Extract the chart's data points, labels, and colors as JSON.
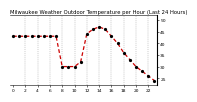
{
  "title": "Milwaukee Weather Outdoor Temperature per Hour (Last 24 Hours)",
  "hours": [
    0,
    1,
    2,
    3,
    4,
    5,
    6,
    7,
    8,
    9,
    10,
    11,
    12,
    13,
    14,
    15,
    16,
    17,
    18,
    19,
    20,
    21,
    22,
    23
  ],
  "temps": [
    43,
    43,
    43,
    43,
    43,
    43,
    43,
    43,
    30,
    30,
    30,
    32,
    44,
    46,
    47,
    46,
    43,
    40,
    36,
    33,
    30,
    28,
    26,
    24
  ],
  "line_color": "#cc0000",
  "marker_color": "#000000",
  "bg_color": "#ffffff",
  "grid_color": "#999999",
  "title_fontsize": 3.8,
  "tick_fontsize": 3.2,
  "ylim": [
    22,
    52
  ],
  "yticks": [
    25,
    30,
    35,
    40,
    45,
    50
  ],
  "xtick_hours": [
    0,
    2,
    4,
    6,
    8,
    10,
    12,
    14,
    16,
    18,
    20,
    22
  ],
  "vgrid_hours": [
    2,
    4,
    6,
    8,
    10,
    12,
    14,
    16,
    18,
    20,
    22
  ]
}
